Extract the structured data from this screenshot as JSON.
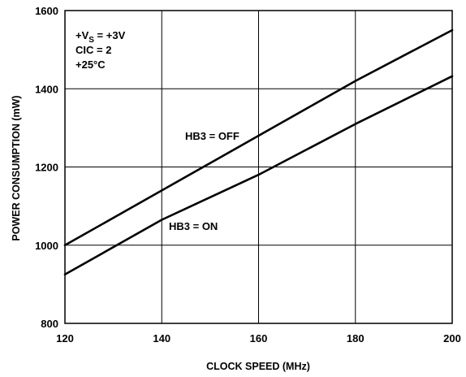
{
  "chart_data": {
    "type": "line",
    "title": "",
    "xlabel": "CLOCK SPEED (MHz)",
    "ylabel": "POWER CONSUMPTION (mW)",
    "xlim": [
      120,
      200
    ],
    "ylim": [
      800,
      1600
    ],
    "xticks": [
      "120",
      "140",
      "160",
      "180",
      "200"
    ],
    "yticks": [
      "800",
      "1000",
      "1200",
      "1400",
      "1600"
    ],
    "grid": true,
    "series": [
      {
        "name": "HB3 = OFF",
        "x": [
          120,
          140,
          160,
          180,
          200
        ],
        "y": [
          1000,
          1140,
          1280,
          1420,
          1550
        ]
      },
      {
        "name": "HB3 = ON",
        "x": [
          120,
          140,
          160,
          180,
          200
        ],
        "y": [
          925,
          1065,
          1180,
          1310,
          1432
        ]
      }
    ],
    "conditions": {
      "vs_prefix": "+V",
      "vs_sub": "S",
      "vs_suffix": " = +3V",
      "cic": "CIC = 2",
      "temp": "+25°C"
    }
  }
}
